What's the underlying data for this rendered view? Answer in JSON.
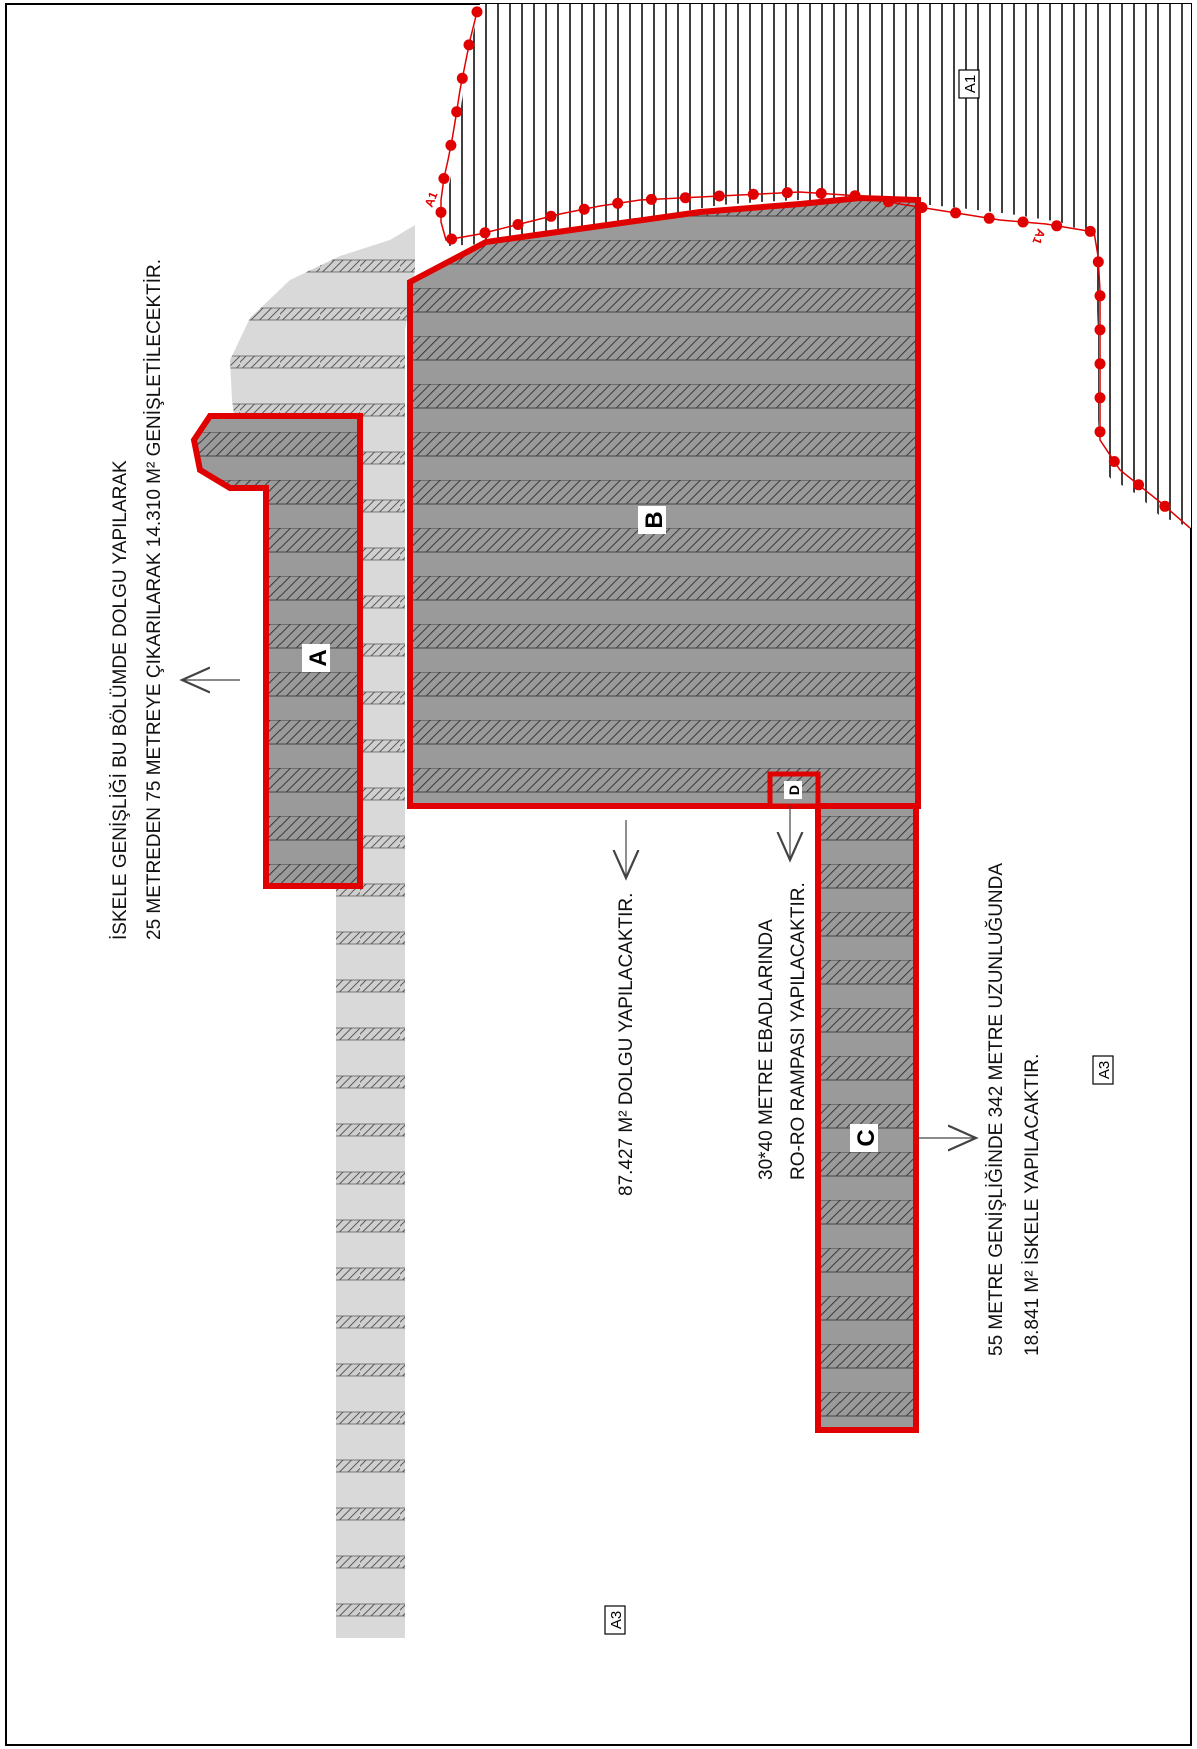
{
  "colors": {
    "boundary": "#e00000",
    "fill_dark": "#9a9a9a",
    "fill_light": "#d6d6d6",
    "hatch": "#3a3a3a",
    "frame": "#000000"
  },
  "zones": {
    "A": "A",
    "B": "B",
    "C": "C",
    "D": "D"
  },
  "area_tags": {
    "a1_top": "A1",
    "a3_right": "A3",
    "a3_bottom": "A3",
    "a1_boundary_1": "A1",
    "a1_boundary_2": "A1"
  },
  "notes": {
    "zone_a_line1": "İSKELE GENİŞLİĞİ BU BÖLÜMDE DOLGU YAPILARAK",
    "zone_a_line2": "25 METREDEN 75 METREYE ÇIKARILARAK 14.310 M² GENİŞLETİLECEKTİR.",
    "zone_b": "87.427 M² DOLGU YAPILACAKTIR.",
    "zone_d_line1": "30*40 METRE EBADLARINDA",
    "zone_d_line2": "RO-RO RAMPASI YAPILACAKTIR.",
    "zone_c_line1": "55 METRE GENİŞLİĞİNDE 342 METRE UZUNLUĞUNDA",
    "zone_c_line2": "18.841 M² İSKELE YAPILACAKTIR."
  }
}
